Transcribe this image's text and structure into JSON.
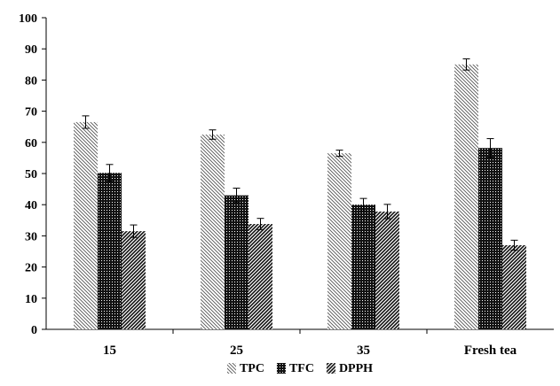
{
  "chart_data": {
    "type": "bar",
    "title": "",
    "xlabel": "",
    "ylabel": "",
    "categories": [
      "15",
      "25",
      "35",
      "Fresh tea"
    ],
    "ylim": [
      0,
      100
    ],
    "yticks": [
      0,
      10,
      20,
      30,
      40,
      50,
      60,
      70,
      80,
      90,
      100
    ],
    "grid": false,
    "legend_position": "bottom-center",
    "series": [
      {
        "name": "TPC",
        "pattern": "light-diagonal-hatch",
        "values": [
          66.5,
          62.5,
          56.5,
          85.0
        ],
        "errors": [
          2.0,
          1.5,
          1.0,
          1.8
        ]
      },
      {
        "name": "TFC",
        "pattern": "dense-dots",
        "values": [
          50.2,
          43.0,
          40.0,
          58.2
        ],
        "errors": [
          2.7,
          2.3,
          2.0,
          3.0
        ]
      },
      {
        "name": "DPPH",
        "pattern": "dark-diagonal-hatch",
        "values": [
          31.5,
          33.8,
          37.8,
          27.0
        ],
        "errors": [
          2.0,
          1.8,
          2.3,
          1.6
        ]
      }
    ]
  }
}
